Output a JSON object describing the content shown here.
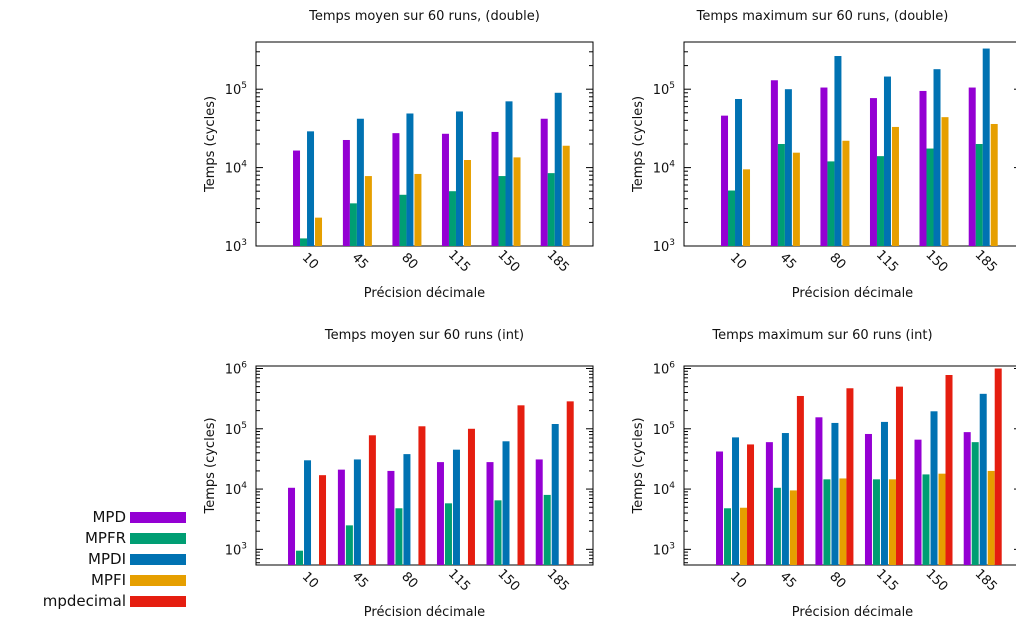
{
  "legend": [
    {
      "name": "MPD",
      "color": "#9400d3"
    },
    {
      "name": "MPFR",
      "color": "#009e73"
    },
    {
      "name": "MPDI",
      "color": "#0072b2"
    },
    {
      "name": "MPFI",
      "color": "#e69f00"
    },
    {
      "name": "mpdecimal",
      "color": "#e51e10"
    }
  ],
  "chart_data": [
    {
      "type": "bar",
      "title": "Temps moyen sur 60 runs, (double)",
      "xlabel": "Précision décimale",
      "ylabel": "Temps (cycles)",
      "yscale": "log",
      "ylim": [
        1000,
        400000
      ],
      "yticks": [
        {
          "value": 1000,
          "mant": "10",
          "exp": "3"
        },
        {
          "value": 10000,
          "mant": "10",
          "exp": "4"
        },
        {
          "value": 100000,
          "mant": "10",
          "exp": "5"
        }
      ],
      "categories": [
        "10",
        "45",
        "80",
        "115",
        "150",
        "185"
      ],
      "series": [
        {
          "name": "MPD",
          "values": [
            16500,
            22500,
            27500,
            27000,
            28500,
            42000
          ]
        },
        {
          "name": "MPFR",
          "values": [
            1250,
            3500,
            4500,
            5000,
            7800,
            8500
          ]
        },
        {
          "name": "MPDI",
          "values": [
            29000,
            42000,
            49000,
            52000,
            70000,
            90000
          ]
        },
        {
          "name": "MPFI",
          "values": [
            2300,
            7800,
            8300,
            12500,
            13500,
            19000
          ]
        }
      ]
    },
    {
      "type": "bar",
      "title": "Temps maximum sur 60 runs, (double)",
      "xlabel": "Précision décimale",
      "ylabel": "Temps (cycles)",
      "yscale": "log",
      "ylim": [
        1000,
        400000
      ],
      "yticks": [
        {
          "value": 1000,
          "mant": "10",
          "exp": "3"
        },
        {
          "value": 10000,
          "mant": "10",
          "exp": "4"
        },
        {
          "value": 100000,
          "mant": "10",
          "exp": "5"
        }
      ],
      "categories": [
        "10",
        "45",
        "80",
        "115",
        "150",
        "185"
      ],
      "series": [
        {
          "name": "MPD",
          "values": [
            46000,
            130000,
            105000,
            77000,
            95000,
            105000
          ]
        },
        {
          "name": "MPFR",
          "values": [
            5100,
            20000,
            12000,
            14000,
            17500,
            20000
          ]
        },
        {
          "name": "MPDI",
          "values": [
            75000,
            100000,
            265000,
            145000,
            180000,
            330000
          ]
        },
        {
          "name": "MPFI",
          "values": [
            9500,
            15500,
            22000,
            33000,
            44000,
            36000
          ]
        }
      ]
    },
    {
      "type": "bar",
      "title": "Temps moyen sur 60 runs (int)",
      "xlabel": "Précision décimale",
      "ylabel": "Temps (cycles)",
      "yscale": "log",
      "ylim": [
        550,
        1100000
      ],
      "yticks": [
        {
          "value": 1000,
          "mant": "10",
          "exp": "3"
        },
        {
          "value": 10000,
          "mant": "10",
          "exp": "4"
        },
        {
          "value": 100000,
          "mant": "10",
          "exp": "5"
        },
        {
          "value": 1000000,
          "mant": "10",
          "exp": "6"
        }
      ],
      "categories": [
        "10",
        "45",
        "80",
        "115",
        "150",
        "185"
      ],
      "series": [
        {
          "name": "MPD",
          "values": [
            10500,
            21000,
            20000,
            28000,
            28000,
            31000
          ]
        },
        {
          "name": "MPFR",
          "values": [
            950,
            2500,
            4800,
            5800,
            6500,
            8000
          ]
        },
        {
          "name": "MPDI",
          "values": [
            30000,
            31000,
            38000,
            45000,
            62000,
            120000
          ]
        },
        {
          "name": "MPFI",
          "values": null
        },
        {
          "name": "mpdecimal",
          "values": [
            17000,
            78000,
            110000,
            100000,
            245000,
            285000
          ]
        }
      ]
    },
    {
      "type": "bar",
      "title": "Temps maximum sur 60 runs (int)",
      "xlabel": "Précision décimale",
      "ylabel": "Temps (cycles)",
      "yscale": "log",
      "ylim": [
        550,
        1100000
      ],
      "yticks": [
        {
          "value": 1000,
          "mant": "10",
          "exp": "3"
        },
        {
          "value": 10000,
          "mant": "10",
          "exp": "4"
        },
        {
          "value": 100000,
          "mant": "10",
          "exp": "5"
        },
        {
          "value": 1000000,
          "mant": "10",
          "exp": "6"
        }
      ],
      "categories": [
        "10",
        "45",
        "80",
        "115",
        "150",
        "185"
      ],
      "series": [
        {
          "name": "MPD",
          "values": [
            42000,
            60000,
            155000,
            82000,
            66000,
            88000
          ]
        },
        {
          "name": "MPFR",
          "values": [
            4800,
            10500,
            14500,
            14500,
            17500,
            60000
          ]
        },
        {
          "name": "MPDI",
          "values": [
            72000,
            85000,
            125000,
            130000,
            195000,
            380000
          ]
        },
        {
          "name": "MPFI",
          "values": [
            4900,
            9500,
            15000,
            14500,
            18000,
            20000
          ]
        },
        {
          "name": "mpdecimal",
          "values": [
            55000,
            350000,
            470000,
            500000,
            780000,
            1000000
          ]
        }
      ]
    }
  ]
}
